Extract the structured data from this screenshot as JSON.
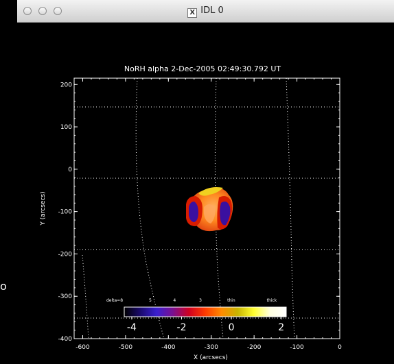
{
  "window": {
    "title": "IDL 0",
    "title_icon": "x11-icon"
  },
  "stray_char": "o",
  "plot": {
    "title": "NoRH alpha    2-Dec-2005 02:49:30.792 UT",
    "xlabel": "X (arcsecs)",
    "ylabel": "Y (arcsecs)",
    "xlim": [
      -620,
      0
    ],
    "ylim": [
      -400,
      215
    ],
    "x_ticks": [
      "-600",
      "-500",
      "-400",
      "-300",
      "-200",
      "-100",
      "0"
    ],
    "y_ticks": [
      "200",
      "100",
      "0",
      "-100",
      "-200",
      "-300",
      "-400"
    ],
    "x_tick_values": [
      -600,
      -500,
      -400,
      -300,
      -200,
      -100,
      0
    ],
    "y_tick_values": [
      200,
      100,
      0,
      -100,
      -200,
      -300,
      -400
    ],
    "grid": "dotted"
  },
  "colorbar": {
    "top_labels": [
      "delta=8",
      "5",
      "4",
      "3",
      "thin",
      "thick"
    ],
    "bottom_labels": [
      "-4",
      "-2",
      "0",
      "2"
    ],
    "range": [
      -4.3,
      2.2
    ],
    "colors": [
      "#000000",
      "#1a0a6e",
      "#3a1fd0",
      "#7a1090",
      "#d00020",
      "#ff3a00",
      "#ff8a00",
      "#c8b400",
      "#ffff30",
      "#ffffe0",
      "#ffffff"
    ]
  },
  "colors": {
    "background": "#000000",
    "axis": "#ffffff",
    "source_dark": "#3a10a0",
    "source_red": "#d81c00",
    "source_orange": "#ff7a10",
    "source_light": "#ffa860",
    "source_yellow": "#f0d020"
  }
}
